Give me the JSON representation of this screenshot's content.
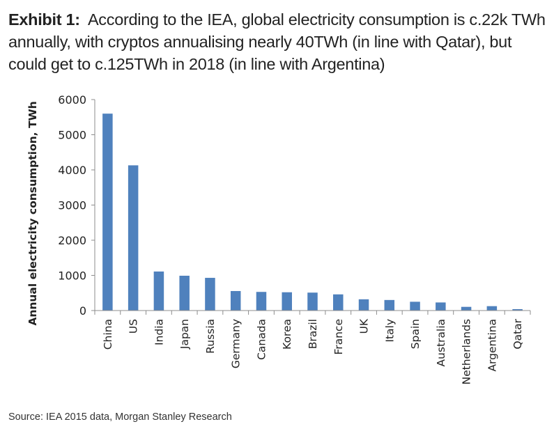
{
  "exhibit": {
    "lead": "Exhibit 1:",
    "text": "According to the IEA, global electricity consumption is c.22k TWh annually, with cryptos annualising nearly 40TWh (in line with Qatar), but could get to c.125TWh in 2018 (in line with Argentina)"
  },
  "source": "Source: IEA 2015 data, Morgan Stanley Research",
  "chart_data": {
    "type": "bar",
    "title": "",
    "xlabel": "",
    "ylabel": "Annual electricity consumption, TWh",
    "ylim": [
      0,
      6000
    ],
    "yticks": [
      0,
      1000,
      2000,
      3000,
      4000,
      5000,
      6000
    ],
    "grid": false,
    "legend": "none",
    "bar_color": "#4f81bd",
    "categories": [
      "China",
      "US",
      "India",
      "Japan",
      "Russia",
      "Germany",
      "Canada",
      "Korea",
      "Brazil",
      "France",
      "UK",
      "Italy",
      "Spain",
      "Australia",
      "Netherlands",
      "Argentina",
      "Qatar"
    ],
    "values": [
      5600,
      4130,
      1110,
      990,
      930,
      555,
      530,
      520,
      510,
      460,
      320,
      300,
      250,
      230,
      105,
      125,
      40
    ]
  }
}
